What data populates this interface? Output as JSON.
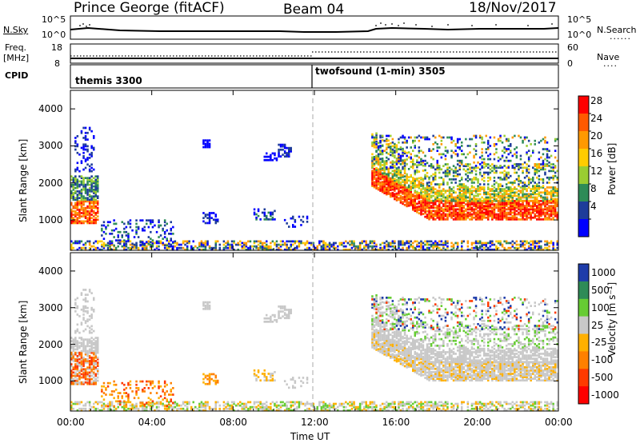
{
  "header": {
    "station": "Prince George (fitACF)",
    "beam": "Beam 04",
    "date": "18/Nov/2017"
  },
  "top_panel": {
    "left_label": "N.Sky",
    "right_label": "N.Search",
    "left_ticks": [
      "10^5",
      "10^0"
    ],
    "right_ticks": [
      "10^5",
      "10^0"
    ]
  },
  "freq_panel": {
    "left_label_line1": "Freq.",
    "left_label_line2": "[MHz]",
    "right_label": "Nave",
    "left_ticks": [
      "18",
      "8"
    ],
    "right_ticks": [
      "60",
      "0"
    ]
  },
  "cpid": {
    "label": "CPID",
    "mode1": "themis 3300",
    "mode2": "twofsound (1-min) 3505"
  },
  "power_panel": {
    "ylabel": "Slant Range [km]",
    "colorbar_label": "Power [dB]",
    "colorbar_ticks": [
      "28",
      "24",
      "20",
      "16",
      "12",
      "8",
      "4"
    ],
    "colors": [
      "#ff0000",
      "#ff5a00",
      "#ff9900",
      "#ffcc00",
      "#9acd32",
      "#2e8b57",
      "#1e3c9a",
      "#0000ff"
    ]
  },
  "velocity_panel": {
    "ylabel": "Slant Range [km]",
    "colorbar_label": "Velocity [m s⁻¹]",
    "colorbar_ticks": [
      "1000",
      "500",
      "100",
      "25",
      "-25",
      "-100",
      "-500",
      "-1000"
    ],
    "colors": [
      "#1e3caa",
      "#2e8b57",
      "#66cc33",
      "#c8c8c8",
      "#ffb000",
      "#ff8000",
      "#ff3a00",
      "#ff0000"
    ]
  },
  "x_axis": {
    "label": "Time UT",
    "ticks": [
      "00:00",
      "04:00",
      "08:00",
      "12:00",
      "16:00",
      "20:00",
      "00:00"
    ]
  },
  "chart_data": [
    {
      "type": "heatmap",
      "title": "Power [dB]",
      "xlabel": "Time UT",
      "ylabel": "Slant Range [km]",
      "x_range_hours": [
        0,
        24
      ],
      "ylim": [
        180,
        4500
      ],
      "y_ticks": [
        1000,
        2000,
        3000,
        4000
      ],
      "colorbar_range": [
        0,
        30
      ],
      "colorbar_ticks": [
        4,
        8,
        12,
        16,
        20,
        24,
        28
      ]
    },
    {
      "type": "heatmap",
      "title": "Velocity [m s⁻¹]",
      "xlabel": "Time UT",
      "ylabel": "Slant Range [km]",
      "x_range_hours": [
        0,
        24
      ],
      "ylim": [
        180,
        4500
      ],
      "y_ticks": [
        1000,
        2000,
        3000,
        4000
      ],
      "colorbar_ticks": [
        1000,
        500,
        100,
        25,
        -25,
        -100,
        -500,
        -1000
      ]
    }
  ]
}
